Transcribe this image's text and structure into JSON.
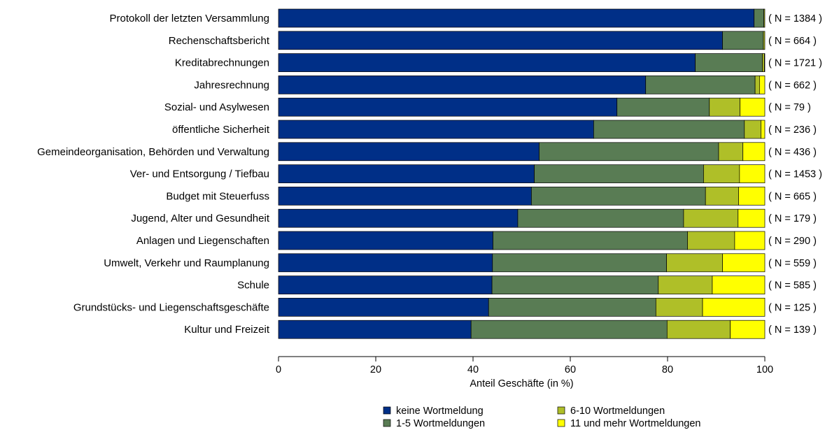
{
  "chart_data": {
    "type": "bar",
    "orientation": "horizontal",
    "stacked": true,
    "categories": [
      "Protokoll der letzten Versammlung",
      "Rechenschaftsbericht",
      "Kreditabrechnungen",
      "Jahresrechnung",
      "Sozial- und Asylwesen",
      "öffentliche Sicherheit",
      "Gemeindeorganisation, Behörden und Verwaltung",
      "Ver- und Entsorgung / Tiefbau",
      "Budget mit Steuerfuss",
      "Jugend, Alter und Gesundheit",
      "Anlagen und Liegenschaften",
      "Umwelt, Verkehr und Raumplanung",
      "Schule",
      "Grundstücks- und Liegenschaftsgeschäfte",
      "Kultur und Freizeit"
    ],
    "n_labels": [
      "( N = 1384 )",
      "( N = 664 )",
      "( N = 1721 )",
      "( N = 662 )",
      "( N = 79 )",
      "( N = 236 )",
      "( N = 436 )",
      "( N = 1453 )",
      "( N = 665 )",
      "( N = 179 )",
      "( N = 290 )",
      "( N = 559 )",
      "( N = 585 )",
      "( N = 125 )",
      "( N = 139 )"
    ],
    "series": [
      {
        "name": "keine Wortmeldung",
        "color": "#002f87",
        "values": [
          97.8,
          91.3,
          85.7,
          75.5,
          69.6,
          64.8,
          53.6,
          52.6,
          52.0,
          49.2,
          44.1,
          44.0,
          43.9,
          43.2,
          39.6
        ]
      },
      {
        "name": "1-5 Wortmeldungen",
        "color": "#597c54",
        "values": [
          2.0,
          8.4,
          13.8,
          22.5,
          19.0,
          31.0,
          36.9,
          34.8,
          35.8,
          34.1,
          40.0,
          35.8,
          34.2,
          34.4,
          40.3
        ]
      },
      {
        "name": "6-10 Wortmeldungen",
        "color": "#afbf28",
        "values": [
          0.2,
          0.3,
          0.4,
          0.9,
          6.3,
          3.4,
          5.0,
          7.4,
          6.8,
          11.2,
          9.7,
          11.5,
          11.1,
          9.6,
          13.0
        ]
      },
      {
        "name": "11 und mehr Wortmeldungen",
        "color": "#ffff00",
        "values": [
          0.0,
          0.0,
          0.1,
          1.1,
          5.1,
          0.8,
          4.5,
          5.2,
          5.4,
          5.5,
          6.2,
          8.7,
          10.8,
          12.8,
          7.1
        ]
      }
    ],
    "xlabel": "Anteil Geschäfte (in %)",
    "xlim": [
      0,
      100
    ],
    "xticks": [
      0,
      20,
      40,
      60,
      80,
      100
    ],
    "grid": false,
    "legend_position": "bottom"
  }
}
